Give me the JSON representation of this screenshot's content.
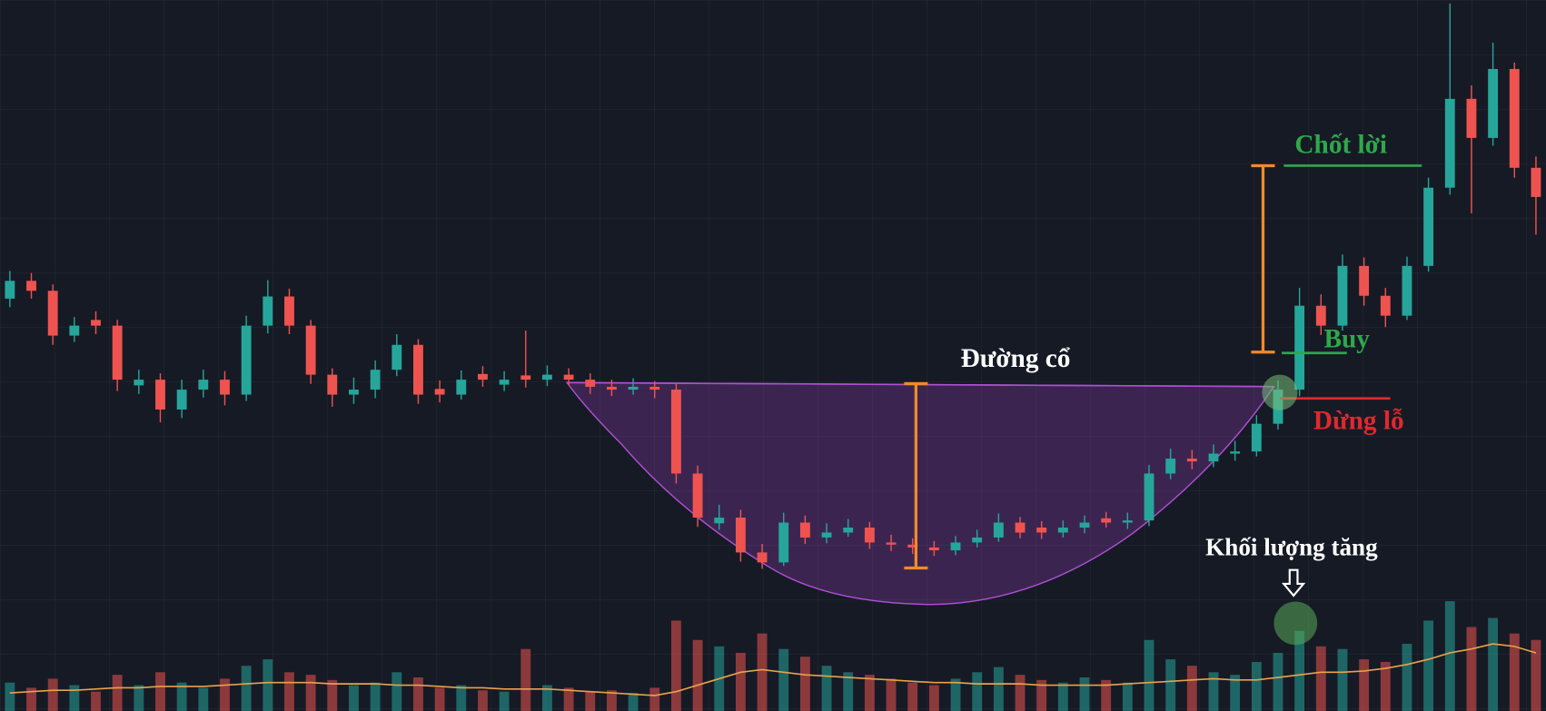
{
  "chart_data": {
    "type": "candlestick",
    "annotations": [
      "Đường cổ",
      "Chốt lời",
      "Buy",
      "Dừng lỗ",
      "Khối lượng tăng"
    ],
    "up_color": "#26a69a",
    "down_color": "#ef5350",
    "volume_ma_color": "#e8a24a",
    "ylim": [
      0,
      100
    ],
    "volume_lim": [
      0,
      100
    ],
    "open": [
      58.0,
      60.5,
      59.1,
      52.8,
      55.0,
      54.2,
      45.8,
      46.6,
      42.4,
      45.2,
      46.6,
      44.5,
      54.2,
      58.3,
      54.2,
      47.3,
      44.5,
      45.2,
      48.0,
      51.5,
      45.3,
      44.5,
      47.4,
      45.9,
      47.2,
      46.6,
      47.3,
      46.6,
      45.6,
      45.2,
      45.6,
      45.2,
      33.4,
      26.4,
      27.2,
      22.3,
      20.9,
      26.5,
      24.4,
      25.1,
      25.8,
      23.7,
      23.4,
      23.0,
      22.6,
      23.7,
      24.4,
      26.5,
      25.8,
      25.1,
      25.8,
      27.1,
      26.5,
      26.8,
      33.4,
      35.5,
      35.1,
      36.2,
      36.5,
      40.4,
      45.2,
      57.0,
      54.2,
      62.6,
      58.4,
      55.6,
      62.6,
      73.6,
      86.1,
      80.6,
      90.3,
      76.4
    ],
    "high": [
      61.9,
      61.6,
      60.0,
      55.4,
      56.2,
      55.0,
      48.0,
      47.5,
      46.6,
      48.0,
      47.8,
      55.6,
      60.6,
      59.4,
      55.0,
      48.2,
      46.9,
      49.3,
      53.0,
      52.3,
      46.5,
      47.9,
      48.5,
      47.8,
      53.5,
      48.6,
      48.2,
      47.5,
      46.6,
      46.8,
      46.4,
      46.0,
      34.5,
      29.0,
      28.3,
      23.5,
      27.9,
      27.5,
      26.4,
      27.0,
      26.6,
      24.8,
      24.3,
      23.9,
      24.6,
      25.5,
      27.8,
      27.3,
      26.7,
      26.8,
      27.5,
      28.0,
      27.9,
      34.6,
      36.9,
      36.7,
      37.5,
      38.0,
      41.6,
      46.5,
      59.5,
      58.6,
      64.2,
      63.8,
      59.5,
      63.9,
      75.0,
      99.5,
      88.0,
      94.0,
      91.2,
      78.0
    ],
    "low": [
      56.8,
      58.0,
      51.5,
      51.9,
      53.0,
      45.0,
      44.6,
      40.6,
      41.2,
      44.1,
      43.0,
      43.6,
      53.1,
      53.0,
      46.0,
      42.8,
      43.2,
      44.0,
      47.1,
      43.2,
      43.4,
      43.8,
      45.6,
      45.0,
      45.5,
      45.7,
      45.8,
      44.6,
      44.3,
      44.5,
      44.0,
      32.0,
      25.9,
      25.5,
      21.0,
      20.0,
      20.4,
      23.5,
      23.6,
      24.5,
      22.8,
      22.5,
      22.1,
      21.8,
      21.9,
      23.0,
      23.8,
      24.3,
      24.2,
      24.4,
      25.0,
      25.8,
      25.6,
      26.0,
      32.6,
      34.0,
      34.3,
      35.2,
      35.8,
      39.6,
      44.3,
      52.9,
      53.5,
      57.0,
      54.0,
      55.0,
      61.8,
      72.6,
      70.0,
      79.5,
      75.0,
      67.0
    ],
    "close": [
      60.5,
      59.1,
      52.8,
      54.2,
      54.2,
      46.6,
      46.6,
      42.4,
      45.2,
      46.6,
      44.5,
      54.2,
      58.3,
      54.2,
      47.3,
      44.5,
      45.2,
      48.0,
      51.5,
      44.5,
      44.5,
      46.6,
      46.6,
      46.6,
      46.6,
      47.3,
      46.6,
      45.6,
      45.2,
      45.6,
      45.2,
      33.4,
      27.2,
      27.2,
      22.3,
      20.9,
      26.5,
      24.4,
      25.1,
      25.8,
      23.7,
      23.4,
      23.0,
      22.6,
      23.7,
      24.4,
      26.5,
      25.1,
      25.1,
      25.8,
      26.5,
      26.5,
      26.8,
      33.4,
      35.5,
      35.1,
      36.2,
      36.5,
      40.4,
      45.2,
      57.0,
      54.2,
      62.6,
      58.4,
      55.6,
      62.6,
      73.6,
      86.1,
      80.6,
      90.3,
      76.4,
      72.3
    ],
    "volume": [
      22,
      18,
      25,
      20,
      15,
      28,
      20,
      30,
      22,
      18,
      25,
      35,
      40,
      30,
      28,
      24,
      20,
      22,
      30,
      26,
      18,
      20,
      16,
      15,
      48,
      20,
      18,
      15,
      16,
      14,
      18,
      70,
      55,
      50,
      45,
      60,
      48,
      42,
      35,
      30,
      28,
      25,
      22,
      20,
      25,
      30,
      34,
      28,
      24,
      22,
      26,
      24,
      22,
      55,
      40,
      35,
      30,
      28,
      38,
      45,
      62,
      50,
      48,
      40,
      38,
      52,
      70,
      85,
      65,
      72,
      60,
      55
    ],
    "volume_ma": [
      14,
      15,
      16,
      16,
      17,
      18,
      18,
      19,
      19,
      19,
      20,
      21,
      22,
      22,
      22,
      21,
      21,
      21,
      20,
      20,
      19,
      18,
      18,
      17,
      17,
      17,
      16,
      15,
      14,
      13,
      12,
      15,
      20,
      25,
      30,
      32,
      30,
      28,
      27,
      26,
      25,
      24,
      23,
      22,
      22,
      21,
      21,
      21,
      20,
      20,
      20,
      20,
      21,
      22,
      23,
      24,
      25,
      24,
      24,
      26,
      28,
      30,
      30,
      31,
      33,
      36,
      40,
      45,
      48,
      52,
      50,
      45
    ]
  }
}
